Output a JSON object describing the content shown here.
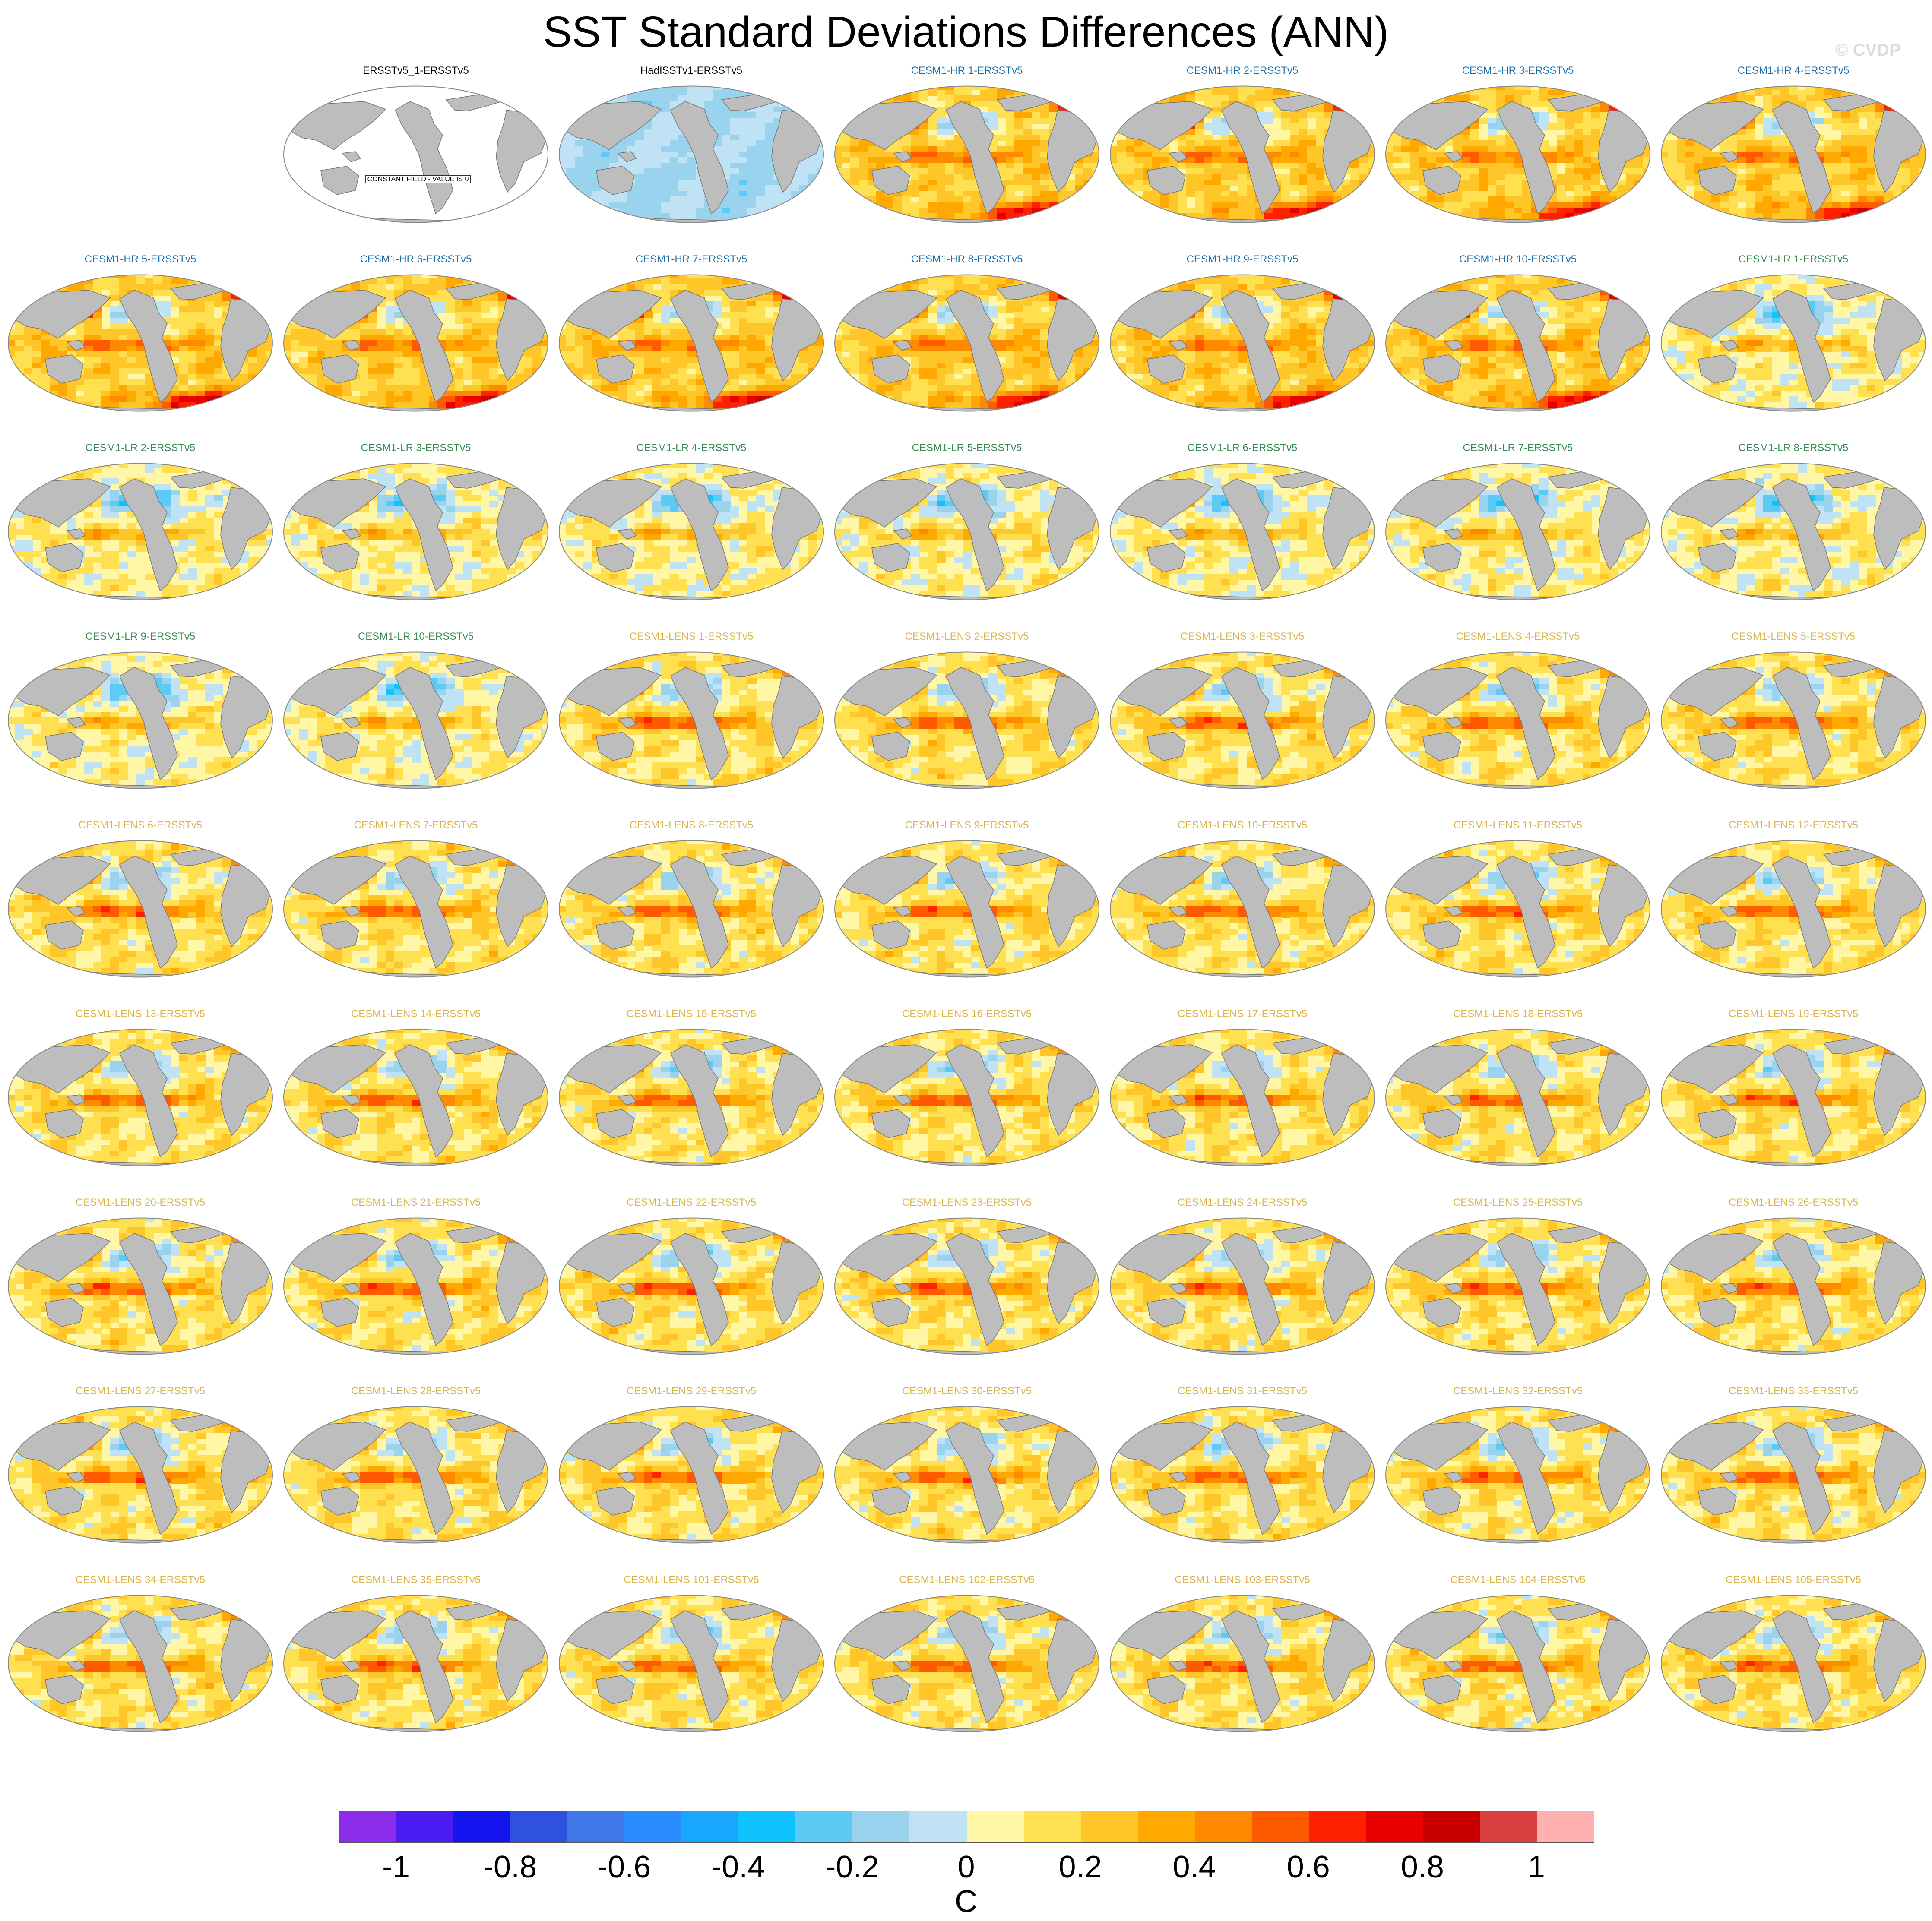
{
  "figure": {
    "title": "SST Standard Deviations Differences (ANN)",
    "watermark": "© CVDP"
  },
  "label_colors": {
    "obs": "#000000",
    "hr": "#1a6fa8",
    "lr": "#3a8a56",
    "lens": "#d9b54a"
  },
  "panels": [
    {
      "label": "ERSSTv5_1-ERSSTv5",
      "group": "obs",
      "field": "constant",
      "constant_label": "CONSTANT FIELD - VALUE IS 0"
    },
    {
      "label": "HadISSTv1-ERSSTv5",
      "group": "obs",
      "field": "mostly-negative"
    },
    {
      "label": "CESM1-HR 1-ERSSTv5",
      "group": "hr",
      "field": "hr"
    },
    {
      "label": "CESM1-HR 2-ERSSTv5",
      "group": "hr",
      "field": "hr"
    },
    {
      "label": "CESM1-HR 3-ERSSTv5",
      "group": "hr",
      "field": "hr"
    },
    {
      "label": "CESM1-HR 4-ERSSTv5",
      "group": "hr",
      "field": "hr"
    },
    {
      "label": "CESM1-HR 5-ERSSTv5",
      "group": "hr",
      "field": "hr"
    },
    {
      "label": "CESM1-HR 6-ERSSTv5",
      "group": "hr",
      "field": "hr"
    },
    {
      "label": "CESM1-HR 7-ERSSTv5",
      "group": "hr",
      "field": "hr"
    },
    {
      "label": "CESM1-HR 8-ERSSTv5",
      "group": "hr",
      "field": "hr"
    },
    {
      "label": "CESM1-HR 9-ERSSTv5",
      "group": "hr",
      "field": "hr"
    },
    {
      "label": "CESM1-HR 10-ERSSTv5",
      "group": "hr",
      "field": "hr"
    },
    {
      "label": "CESM1-LR 1-ERSSTv5",
      "group": "lr",
      "field": "lr"
    },
    {
      "label": "CESM1-LR 2-ERSSTv5",
      "group": "lr",
      "field": "lr"
    },
    {
      "label": "CESM1-LR 3-ERSSTv5",
      "group": "lr",
      "field": "lr"
    },
    {
      "label": "CESM1-LR 4-ERSSTv5",
      "group": "lr",
      "field": "lr"
    },
    {
      "label": "CESM1-LR 5-ERSSTv5",
      "group": "lr",
      "field": "lr"
    },
    {
      "label": "CESM1-LR 6-ERSSTv5",
      "group": "lr",
      "field": "lr"
    },
    {
      "label": "CESM1-LR 7-ERSSTv5",
      "group": "lr",
      "field": "lr"
    },
    {
      "label": "CESM1-LR 8-ERSSTv5",
      "group": "lr",
      "field": "lr"
    },
    {
      "label": "CESM1-LR 9-ERSSTv5",
      "group": "lr",
      "field": "lr"
    },
    {
      "label": "CESM1-LR 10-ERSSTv5",
      "group": "lr",
      "field": "lr"
    },
    {
      "label": "CESM1-LENS 1-ERSSTv5",
      "group": "lens",
      "field": "lens"
    },
    {
      "label": "CESM1-LENS 2-ERSSTv5",
      "group": "lens",
      "field": "lens"
    },
    {
      "label": "CESM1-LENS 3-ERSSTv5",
      "group": "lens",
      "field": "lens"
    },
    {
      "label": "CESM1-LENS 4-ERSSTv5",
      "group": "lens",
      "field": "lens"
    },
    {
      "label": "CESM1-LENS 5-ERSSTv5",
      "group": "lens",
      "field": "lens"
    },
    {
      "label": "CESM1-LENS 6-ERSSTv5",
      "group": "lens",
      "field": "lens"
    },
    {
      "label": "CESM1-LENS 7-ERSSTv5",
      "group": "lens",
      "field": "lens"
    },
    {
      "label": "CESM1-LENS 8-ERSSTv5",
      "group": "lens",
      "field": "lens"
    },
    {
      "label": "CESM1-LENS 9-ERSSTv5",
      "group": "lens",
      "field": "lens"
    },
    {
      "label": "CESM1-LENS 10-ERSSTv5",
      "group": "lens",
      "field": "lens"
    },
    {
      "label": "CESM1-LENS 11-ERSSTv5",
      "group": "lens",
      "field": "lens"
    },
    {
      "label": "CESM1-LENS 12-ERSSTv5",
      "group": "lens",
      "field": "lens"
    },
    {
      "label": "CESM1-LENS 13-ERSSTv5",
      "group": "lens",
      "field": "lens"
    },
    {
      "label": "CESM1-LENS 14-ERSSTv5",
      "group": "lens",
      "field": "lens"
    },
    {
      "label": "CESM1-LENS 15-ERSSTv5",
      "group": "lens",
      "field": "lens"
    },
    {
      "label": "CESM1-LENS 16-ERSSTv5",
      "group": "lens",
      "field": "lens"
    },
    {
      "label": "CESM1-LENS 17-ERSSTv5",
      "group": "lens",
      "field": "lens"
    },
    {
      "label": "CESM1-LENS 18-ERSSTv5",
      "group": "lens",
      "field": "lens"
    },
    {
      "label": "CESM1-LENS 19-ERSSTv5",
      "group": "lens",
      "field": "lens"
    },
    {
      "label": "CESM1-LENS 20-ERSSTv5",
      "group": "lens",
      "field": "lens"
    },
    {
      "label": "CESM1-LENS 21-ERSSTv5",
      "group": "lens",
      "field": "lens"
    },
    {
      "label": "CESM1-LENS 22-ERSSTv5",
      "group": "lens",
      "field": "lens"
    },
    {
      "label": "CESM1-LENS 23-ERSSTv5",
      "group": "lens",
      "field": "lens"
    },
    {
      "label": "CESM1-LENS 24-ERSSTv5",
      "group": "lens",
      "field": "lens"
    },
    {
      "label": "CESM1-LENS 25-ERSSTv5",
      "group": "lens",
      "field": "lens"
    },
    {
      "label": "CESM1-LENS 26-ERSSTv5",
      "group": "lens",
      "field": "lens"
    },
    {
      "label": "CESM1-LENS 27-ERSSTv5",
      "group": "lens",
      "field": "lens"
    },
    {
      "label": "CESM1-LENS 28-ERSSTv5",
      "group": "lens",
      "field": "lens"
    },
    {
      "label": "CESM1-LENS 29-ERSSTv5",
      "group": "lens",
      "field": "lens"
    },
    {
      "label": "CESM1-LENS 30-ERSSTv5",
      "group": "lens",
      "field": "lens"
    },
    {
      "label": "CESM1-LENS 31-ERSSTv5",
      "group": "lens",
      "field": "lens"
    },
    {
      "label": "CESM1-LENS 32-ERSSTv5",
      "group": "lens",
      "field": "lens"
    },
    {
      "label": "CESM1-LENS 33-ERSSTv5",
      "group": "lens",
      "field": "lens"
    },
    {
      "label": "CESM1-LENS 34-ERSSTv5",
      "group": "lens",
      "field": "lens"
    },
    {
      "label": "CESM1-LENS 35-ERSSTv5",
      "group": "lens",
      "field": "lens"
    },
    {
      "label": "CESM1-LENS 101-ERSSTv5",
      "group": "lens",
      "field": "lens"
    },
    {
      "label": "CESM1-LENS 102-ERSSTv5",
      "group": "lens",
      "field": "lens"
    },
    {
      "label": "CESM1-LENS 103-ERSSTv5",
      "group": "lens",
      "field": "lens"
    },
    {
      "label": "CESM1-LENS 104-ERSSTv5",
      "group": "lens",
      "field": "lens"
    },
    {
      "label": "CESM1-LENS 105-ERSSTv5",
      "group": "lens",
      "field": "lens"
    }
  ],
  "colorbar": {
    "colors": [
      "#8a2ce8",
      "#4b1cf2",
      "#1414f0",
      "#2e52df",
      "#3f78e6",
      "#2a8cff",
      "#19a6ff",
      "#0fc3ff",
      "#5ccaf5",
      "#9ad3ee",
      "#bfe3f5",
      "#fff7a6",
      "#ffe050",
      "#ffc62a",
      "#ffa800",
      "#ff8a00",
      "#ff5a00",
      "#ff2000",
      "#e80000",
      "#c80000",
      "#d94040",
      "#ffb0b0"
    ],
    "tick_labels": [
      "-1",
      "-0.8",
      "-0.6",
      "-0.4",
      "-0.2",
      "0",
      "0.2",
      "0.4",
      "0.6",
      "0.8",
      "1"
    ],
    "units": "C",
    "land_color": "#bdbdbd"
  },
  "chart_data": {
    "type": "heatmap",
    "title": "SST Standard Deviations Differences (ANN)",
    "variable": "SST standard deviation difference vs ERSSTv5",
    "units": "C",
    "scale_min": -1.1,
    "scale_max": 1.1,
    "tick_values": [
      -1,
      -0.8,
      -0.6,
      -0.4,
      -0.2,
      0,
      0.2,
      0.4,
      0.6,
      0.8,
      1
    ]
  }
}
